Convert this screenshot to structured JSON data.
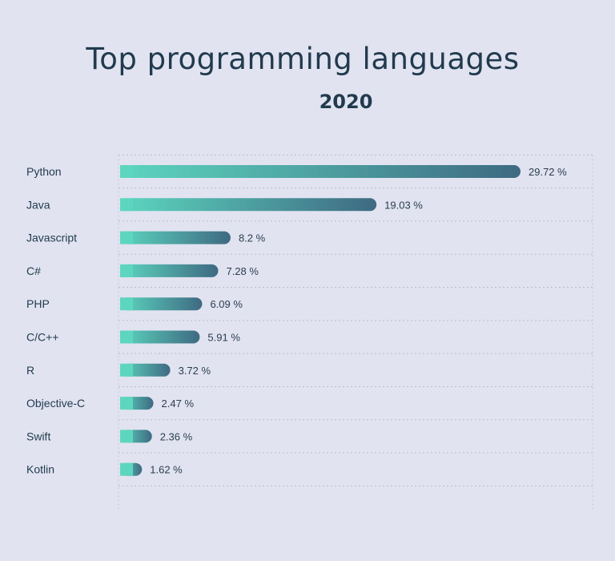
{
  "chart_data": {
    "type": "bar",
    "orientation": "horizontal",
    "title": "Top programming languages",
    "subtitle": "2020",
    "categories": [
      "Python",
      "Java",
      "Javascript",
      "C#",
      "PHP",
      "C/C++",
      "R",
      "Objective-C",
      "Swift",
      "Kotlin"
    ],
    "values": [
      29.72,
      19.03,
      8.2,
      7.28,
      6.09,
      5.91,
      3.72,
      2.47,
      2.36,
      1.62
    ],
    "value_labels": [
      "29.72 %",
      "19.03 %",
      "8.2 %",
      "7.28 %",
      "6.09 %",
      "5.91 %",
      "3.72 %",
      "2.47 %",
      "2.36 %",
      "1.62 %"
    ],
    "unit": "%",
    "grid": true,
    "bar_gradient": [
      "#5cd6bf",
      "#3e6a82"
    ],
    "background": "#e1e3f0"
  }
}
